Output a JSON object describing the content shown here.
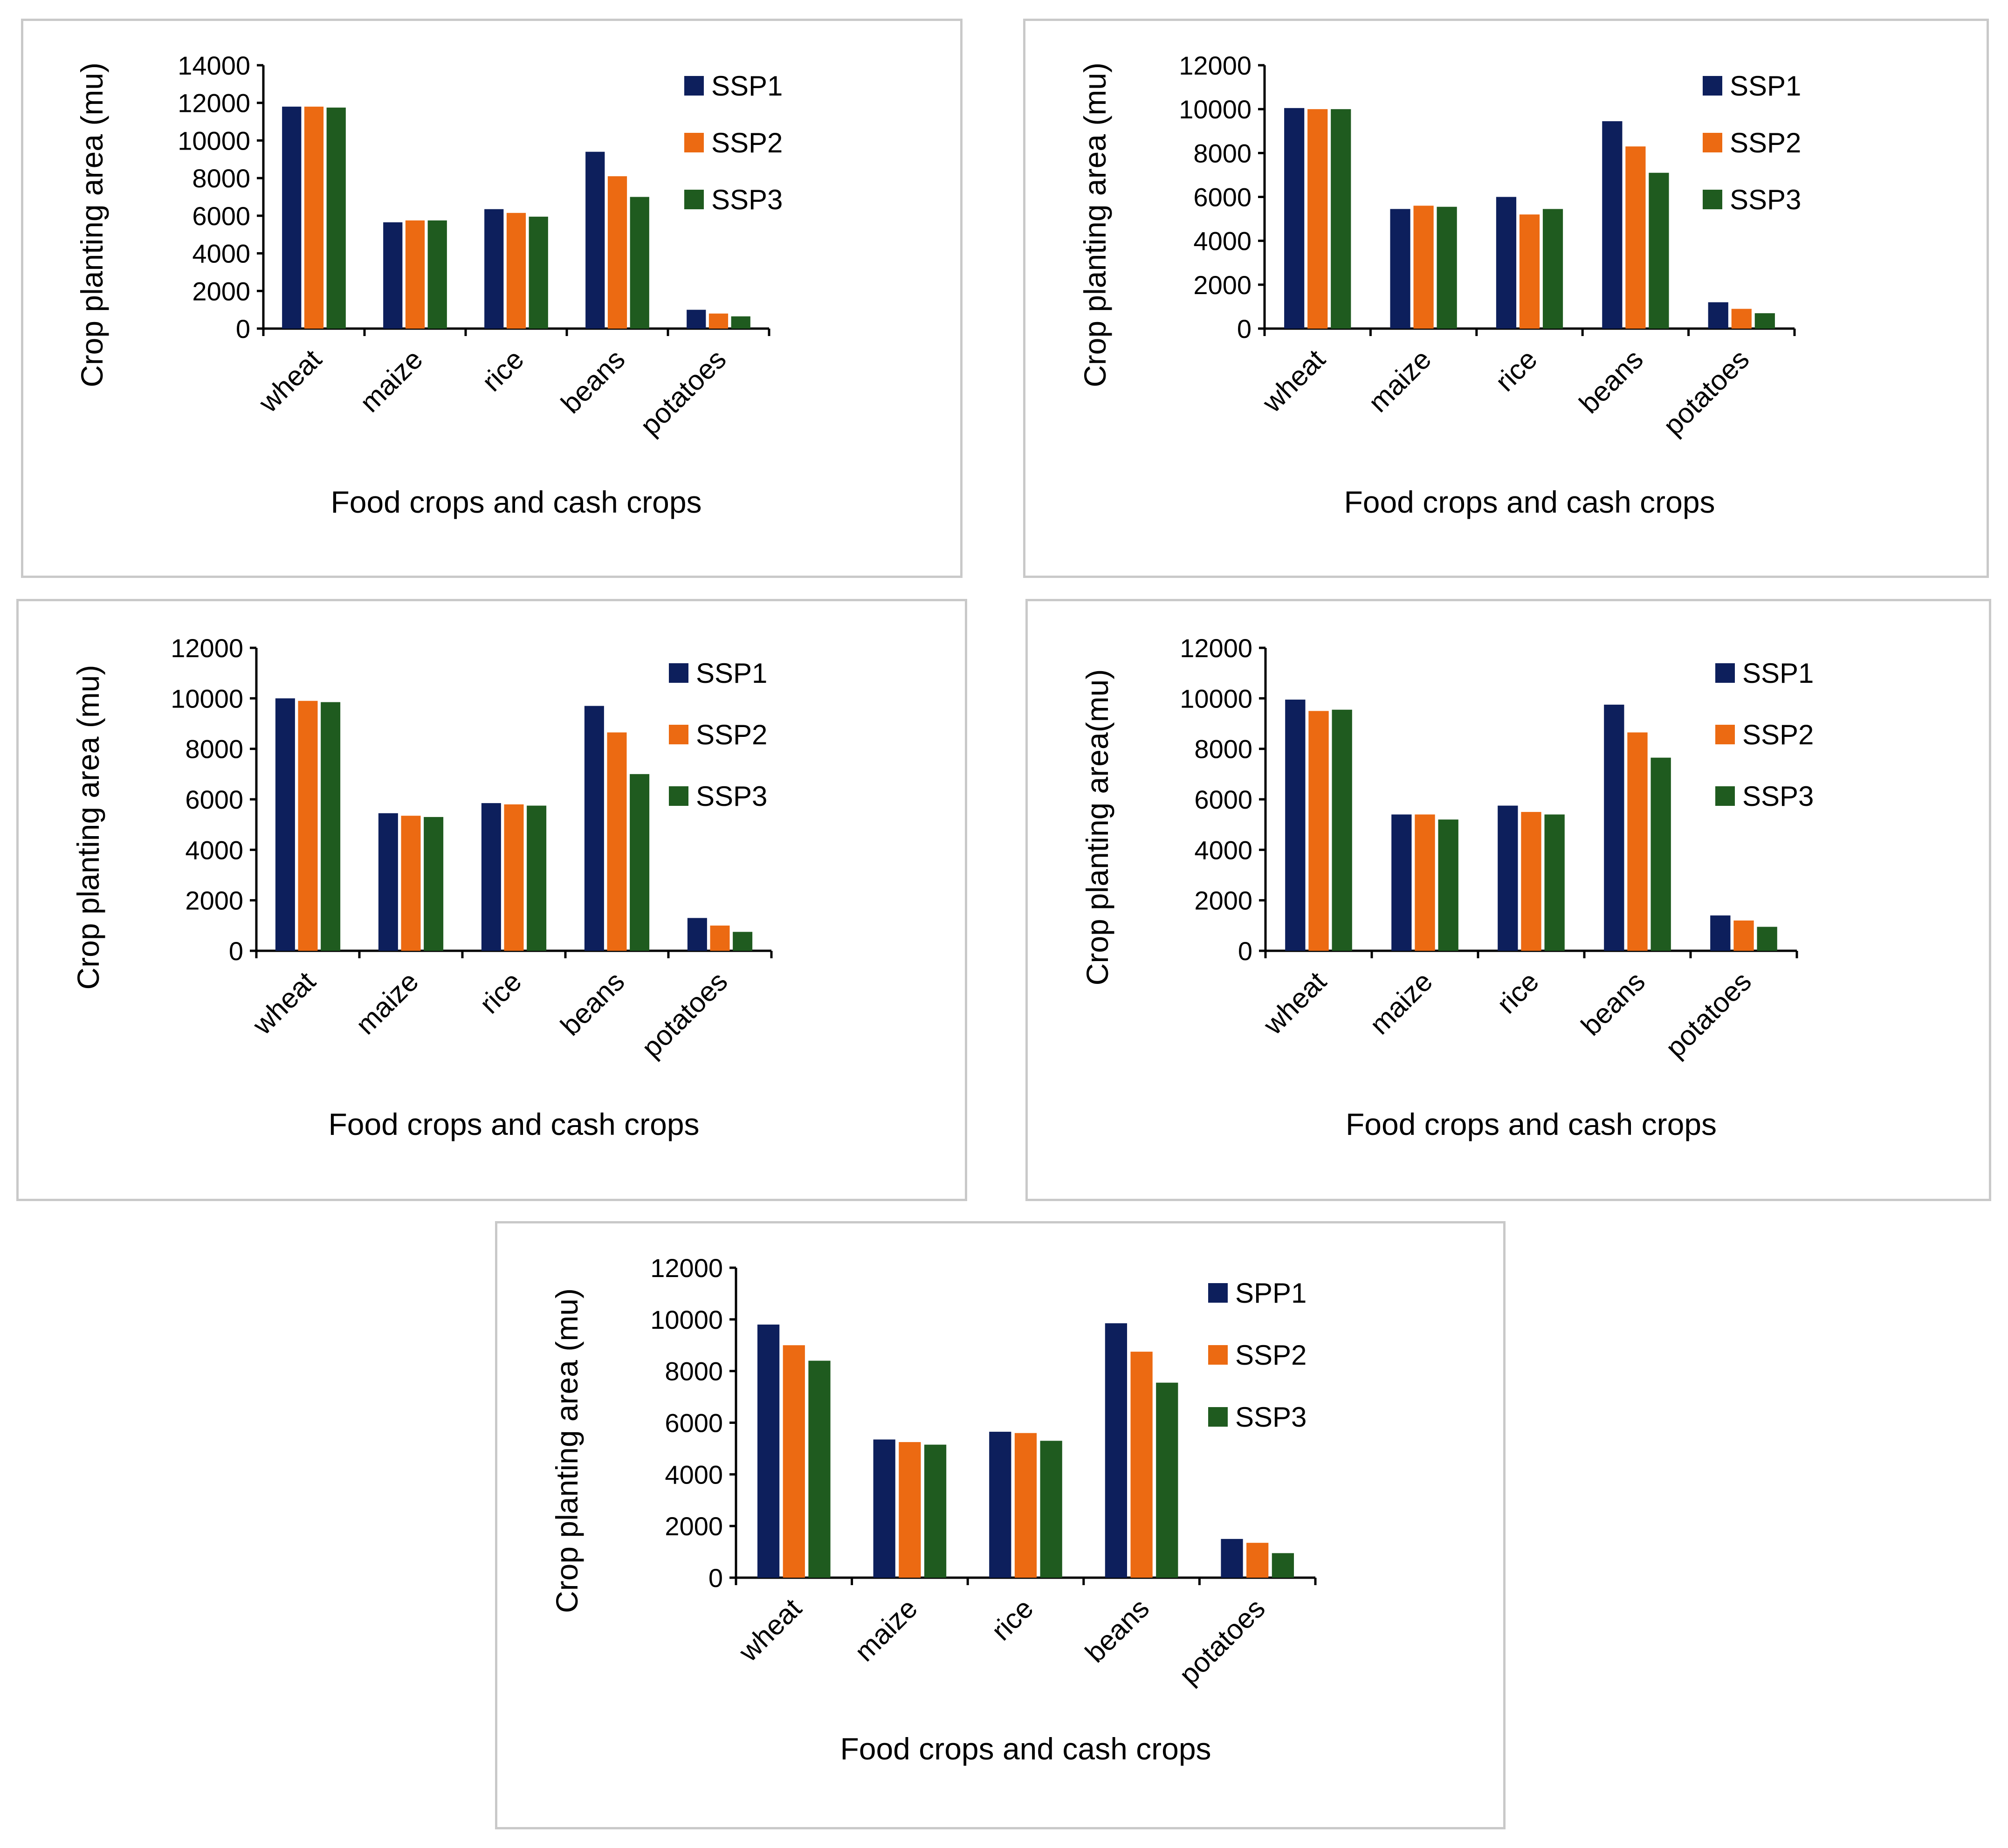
{
  "colors": {
    "s1": "#0d1f5c",
    "s2": "#ec6a12",
    "s3": "#1f5b1f",
    "axis": "#000000",
    "border": "#c9c9c9"
  },
  "chart_data": [
    {
      "type": "bar",
      "categories": [
        "wheat",
        "maize",
        "rice",
        "beans",
        "potatoes"
      ],
      "series": [
        {
          "name": "SSP1",
          "values": [
            11800,
            5650,
            6350,
            9400,
            1000
          ]
        },
        {
          "name": "SSP2",
          "values": [
            11800,
            5750,
            6150,
            8100,
            800
          ]
        },
        {
          "name": "SSP3",
          "values": [
            11750,
            5750,
            5950,
            7000,
            650
          ]
        }
      ],
      "yticks": [
        0,
        2000,
        4000,
        6000,
        8000,
        10000,
        12000,
        14000
      ],
      "ylim": [
        0,
        14000
      ],
      "xlabel": "Food crops and cash crops",
      "ylabel": "Crop planting area (mu)",
      "legend_position": "right"
    },
    {
      "type": "bar",
      "categories": [
        "wheat",
        "maize",
        "rice",
        "beans",
        "potatoes"
      ],
      "series": [
        {
          "name": "SSP1",
          "values": [
            10050,
            5450,
            6000,
            9450,
            1200
          ]
        },
        {
          "name": "SSP2",
          "values": [
            10000,
            5600,
            5200,
            8300,
            900
          ]
        },
        {
          "name": "SSP3",
          "values": [
            10000,
            5550,
            5450,
            7100,
            700
          ]
        }
      ],
      "yticks": [
        0,
        2000,
        4000,
        6000,
        8000,
        10000,
        12000
      ],
      "ylim": [
        0,
        12000
      ],
      "xlabel": "Food crops and cash crops",
      "ylabel": "Crop planting area (mu)",
      "legend_position": "right"
    },
    {
      "type": "bar",
      "categories": [
        "wheat",
        "maize",
        "rice",
        "beans",
        "potatoes"
      ],
      "series": [
        {
          "name": "SSP1",
          "values": [
            10000,
            5450,
            5850,
            9700,
            1300
          ]
        },
        {
          "name": "SSP2",
          "values": [
            9900,
            5350,
            5800,
            8650,
            1000
          ]
        },
        {
          "name": "SSP3",
          "values": [
            9850,
            5300,
            5750,
            7000,
            750
          ]
        }
      ],
      "yticks": [
        0,
        2000,
        4000,
        6000,
        8000,
        10000,
        12000
      ],
      "ylim": [
        0,
        12000
      ],
      "xlabel": "Food crops and cash crops",
      "ylabel": "Crop planting area (mu)",
      "legend_position": "right"
    },
    {
      "type": "bar",
      "categories": [
        "wheat",
        "maize",
        "rice",
        "beans",
        "potatoes"
      ],
      "series": [
        {
          "name": "SSP1",
          "values": [
            9950,
            5400,
            5750,
            9750,
            1400
          ]
        },
        {
          "name": "SSP2",
          "values": [
            9500,
            5400,
            5500,
            8650,
            1200
          ]
        },
        {
          "name": "SSP3",
          "values": [
            9550,
            5200,
            5400,
            7650,
            950
          ]
        }
      ],
      "yticks": [
        0,
        2000,
        4000,
        6000,
        8000,
        10000,
        12000
      ],
      "ylim": [
        0,
        12000
      ],
      "xlabel": "Food crops and cash crops",
      "ylabel": "Crop planting area(mu)",
      "legend_position": "right"
    },
    {
      "type": "bar",
      "categories": [
        "wheat",
        "maize",
        "rice",
        "beans",
        "potatoes"
      ],
      "series": [
        {
          "name": "SPP1",
          "values": [
            9800,
            5350,
            5650,
            9850,
            1500
          ]
        },
        {
          "name": "SSP2",
          "values": [
            9000,
            5250,
            5600,
            8750,
            1350
          ]
        },
        {
          "name": "SSP3",
          "values": [
            8400,
            5150,
            5300,
            7550,
            950
          ]
        }
      ],
      "yticks": [
        0,
        2000,
        4000,
        6000,
        8000,
        10000,
        12000
      ],
      "ylim": [
        0,
        12000
      ],
      "xlabel": "Food crops and cash crops",
      "ylabel": "Crop planting area (mu)",
      "legend_position": "right"
    }
  ]
}
